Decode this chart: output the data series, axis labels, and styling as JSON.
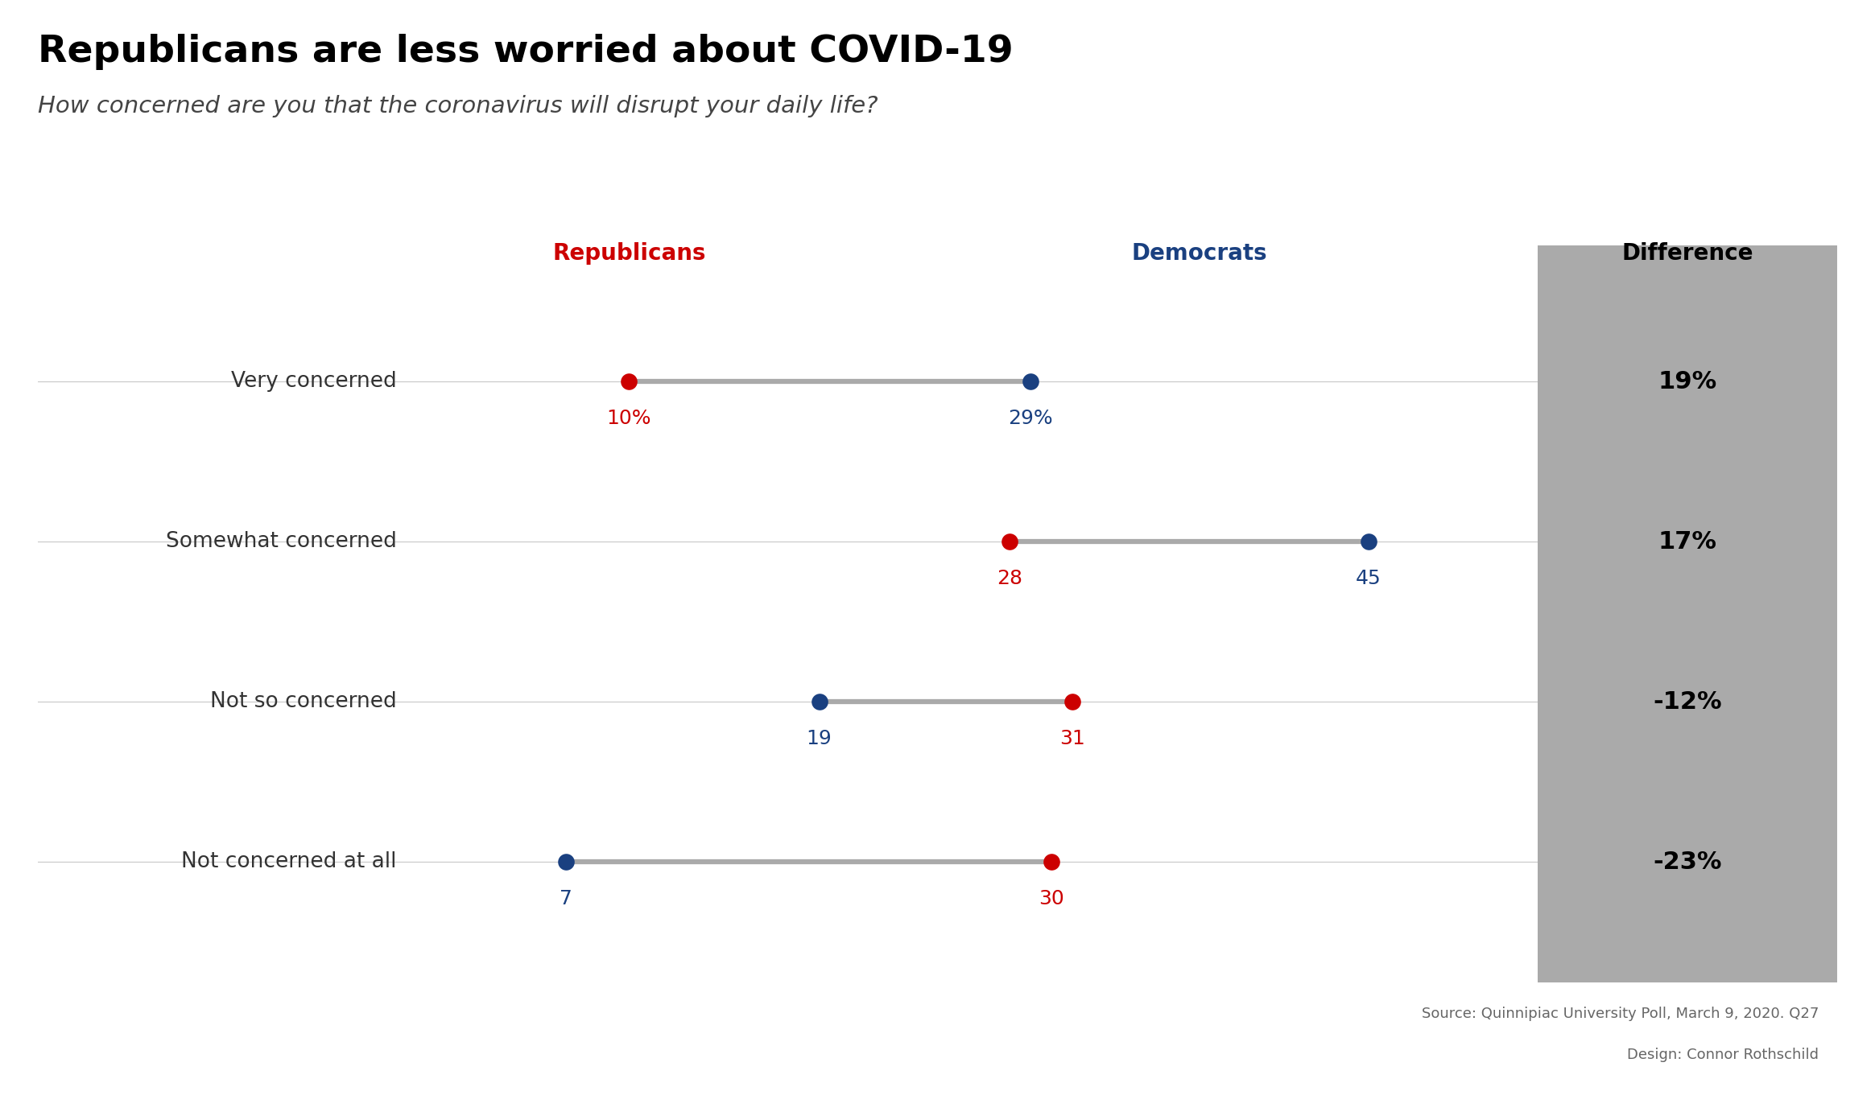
{
  "title": "Republicans are less worried about COVID-19",
  "subtitle": "How concerned are you that the coronavirus will disrupt your daily life?",
  "categories": [
    "Very concerned",
    "Somewhat concerned",
    "Not so concerned",
    "Not concerned at all"
  ],
  "republicans": [
    10,
    28,
    31,
    30
  ],
  "democrats": [
    29,
    45,
    19,
    7
  ],
  "rep_labels": [
    "10%",
    "28",
    "31",
    "30"
  ],
  "dem_labels": [
    "29%",
    "45",
    "19",
    "7"
  ],
  "differences": [
    "19%",
    "17%",
    "-12%",
    "-23%"
  ],
  "rep_color": "#cc0000",
  "dem_color": "#1a4080",
  "line_color": "#aaaaaa",
  "background_color": "#ffffff",
  "diff_box_color": "#aaaaaa",
  "title_fontsize": 34,
  "subtitle_fontsize": 21,
  "category_fontsize": 19,
  "header_fontsize": 20,
  "value_fontsize": 18,
  "diff_fontsize": 22,
  "diff_header_fontsize": 20,
  "source_text": "Source: Quinnipiac University Poll, March 9, 2020. Q27",
  "design_text": "Design: Connor Rothschild",
  "dot_size": 220,
  "line_width": 4.5
}
